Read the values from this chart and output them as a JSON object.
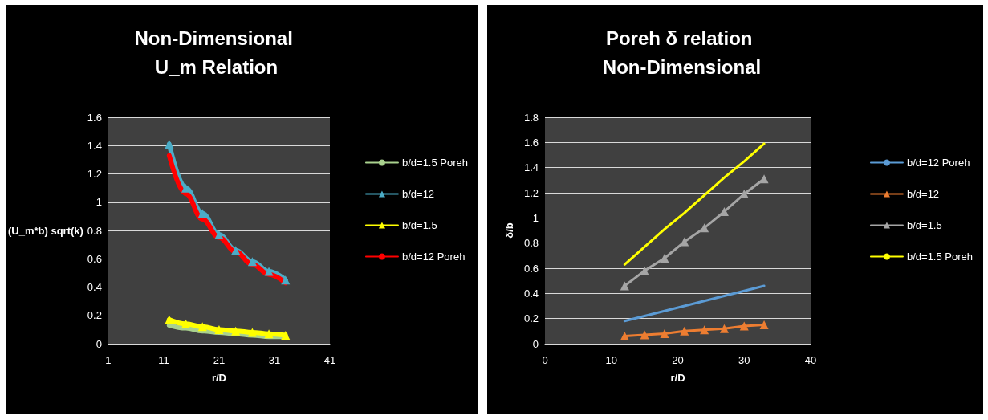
{
  "chart_data": [
    {
      "type": "line",
      "title": "Non-Dimensional U_m Relation",
      "xlabel": "r/D",
      "ylabel": "(U_m*b) sqrt(k)",
      "xlim": [
        1,
        41
      ],
      "xticks": [
        1,
        11,
        21,
        31,
        41
      ],
      "ylim": [
        0,
        1.6
      ],
      "yticks": [
        0,
        0.2,
        0.4,
        0.6,
        0.8,
        1,
        1.2,
        1.4,
        1.6
      ],
      "grid": "y",
      "legend": "right",
      "line_style": "solid",
      "x": [
        12,
        15,
        18,
        21,
        24,
        27,
        30,
        33
      ],
      "series": [
        {
          "name": "b/d=1.5 Poreh",
          "color": "#a9d18e",
          "marker": "none",
          "values": [
            0.13,
            0.11,
            0.09,
            0.08,
            0.07,
            0.06,
            0.05,
            0.05
          ]
        },
        {
          "name": "b/d=12",
          "color": "#4bacc6",
          "marker": "triangle",
          "values": [
            1.41,
            1.1,
            0.92,
            0.77,
            0.66,
            0.58,
            0.51,
            0.45
          ]
        },
        {
          "name": "b/d=1.5",
          "color": "#ffff00",
          "marker": "triangle",
          "values": [
            0.17,
            0.14,
            0.12,
            0.1,
            0.09,
            0.08,
            0.07,
            0.06
          ]
        },
        {
          "name": "b/d=12 Poreh",
          "color": "#ff0000",
          "marker": "none",
          "values": [
            1.33,
            1.06,
            0.88,
            0.75,
            0.65,
            0.56,
            0.49,
            0.43
          ]
        }
      ]
    },
    {
      "type": "line",
      "title": "Poreh δ relation Non-Dimensional",
      "xlabel": "r/D",
      "ylabel": "δ/b",
      "xlim": [
        0,
        40
      ],
      "xticks": [
        0,
        10,
        20,
        30,
        40
      ],
      "ylim": [
        0,
        1.8
      ],
      "yticks": [
        0,
        0.2,
        0.4,
        0.6,
        0.8,
        1,
        1.2,
        1.4,
        1.6,
        1.8
      ],
      "grid": "y",
      "legend": "right",
      "line_style": "solid",
      "x": [
        12,
        15,
        18,
        21,
        24,
        27,
        30,
        33
      ],
      "series": [
        {
          "name": "b/d=12 Poreh",
          "color": "#5b9bd5",
          "marker": "none",
          "values": [
            0.18,
            0.22,
            0.26,
            0.3,
            0.34,
            0.38,
            0.42,
            0.46
          ]
        },
        {
          "name": "b/d=12",
          "color": "#ed7d31",
          "marker": "triangle",
          "values": [
            0.06,
            0.07,
            0.08,
            0.1,
            0.11,
            0.12,
            0.14,
            0.15
          ]
        },
        {
          "name": "b/d=1.5",
          "color": "#a5a5a5",
          "marker": "triangle",
          "values": [
            0.46,
            0.58,
            0.68,
            0.81,
            0.92,
            1.05,
            1.19,
            1.31
          ]
        },
        {
          "name": "b/d=1.5 Poreh",
          "color": "#ffff00",
          "marker": "none",
          "values": [
            0.63,
            0.77,
            0.91,
            1.04,
            1.18,
            1.32,
            1.45,
            1.59
          ]
        }
      ]
    }
  ]
}
